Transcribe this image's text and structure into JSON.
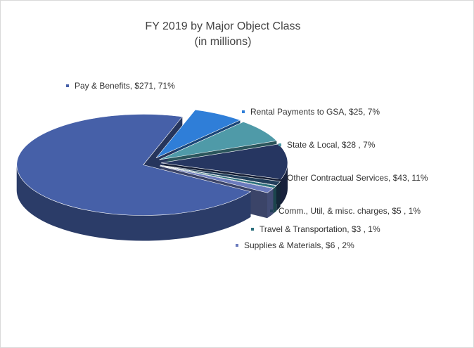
{
  "chart_data": {
    "type": "pie3d",
    "title": "FY 2019  by Major Object Class",
    "subtitle": "(in millions)",
    "categories": [
      "Rental Payments to GSA, $25, 7%",
      "State & Local,  $28 , 7%",
      "Other Contractual Services,  $43, 11%",
      "Comm., Util, & misc. charges, $5 , 1%",
      "Travel & Transportation, $3 , 1%",
      "Supplies & Materials, $6 , 2%",
      "Pay & Benefits, $271, 71%"
    ],
    "values": [
      25,
      28,
      43,
      5,
      3,
      6,
      271
    ],
    "colors": [
      "#2f7ed8",
      "#4f9aa8",
      "#263661",
      "#213f5c",
      "#2b6f7c",
      "#6b7bbd",
      "#4660a8"
    ]
  }
}
